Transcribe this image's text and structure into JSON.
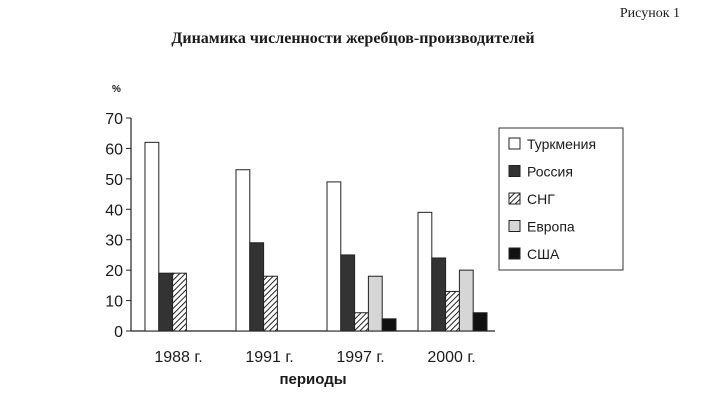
{
  "figure_label": "Рисунок 1",
  "chart_data": {
    "type": "bar",
    "title": "Динамика численности жеребцов-производителей",
    "xlabel": "периоды",
    "ylabel": "%",
    "ylim": [
      0,
      70
    ],
    "yticks": [
      0,
      10,
      20,
      30,
      40,
      50,
      60,
      70
    ],
    "grid": false,
    "legend_position": "right",
    "categories": [
      "1988 г.",
      "1991 г.",
      "1997 г.",
      "2000 г."
    ],
    "series": [
      {
        "name": "Туркмения",
        "values": [
          62,
          53,
          49,
          39
        ],
        "color": "#ffffff",
        "pattern": "none"
      },
      {
        "name": "Россия",
        "values": [
          19,
          29,
          25,
          24
        ],
        "color": "#333333",
        "pattern": "none"
      },
      {
        "name": "СНГ",
        "values": [
          19,
          18,
          6,
          13
        ],
        "color": "#9a9a9a",
        "pattern": "hatch"
      },
      {
        "name": "Европа",
        "values": [
          null,
          null,
          18,
          20
        ],
        "color": "#d6d6d6",
        "pattern": "none"
      },
      {
        "name": "США",
        "values": [
          null,
          null,
          4,
          6
        ],
        "color": "#111111",
        "pattern": "none"
      }
    ]
  }
}
